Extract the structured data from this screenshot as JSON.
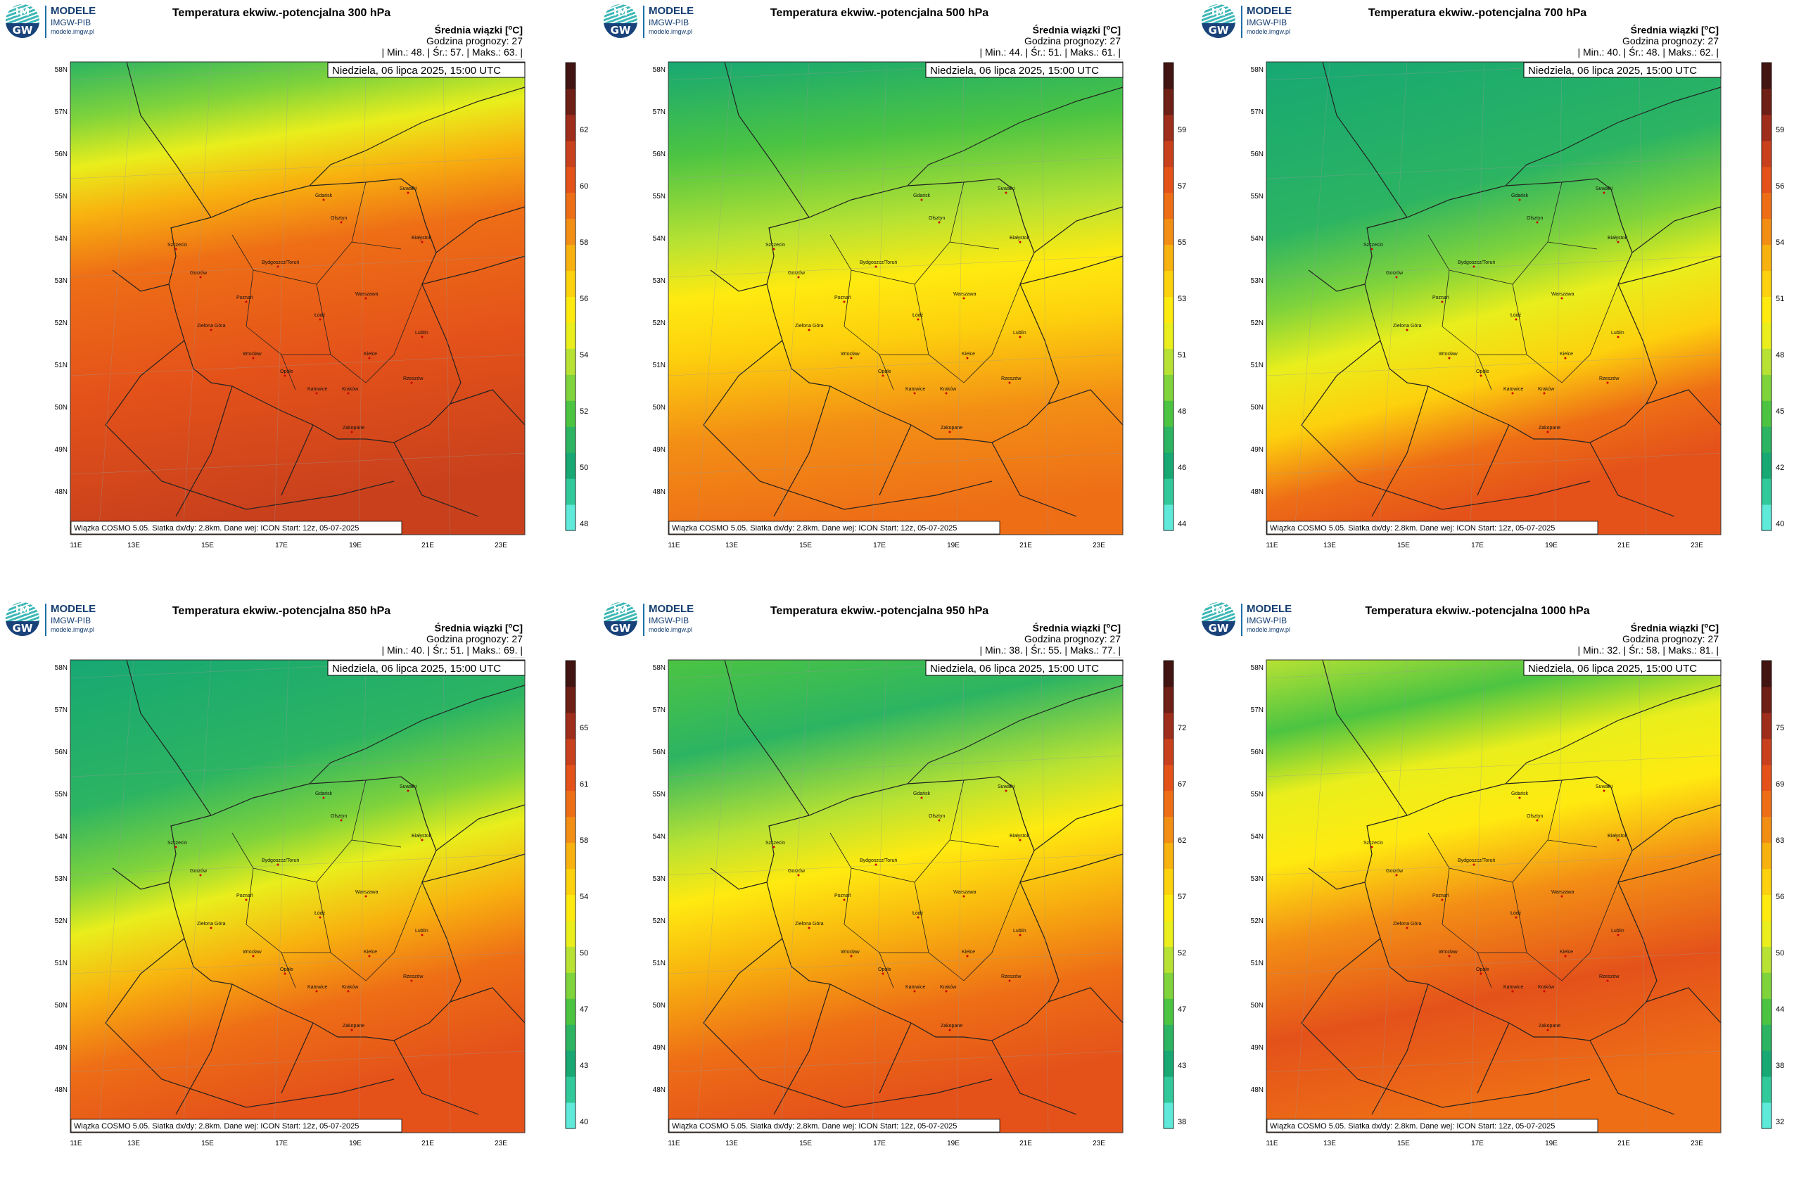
{
  "brand": {
    "line1": "MODELE",
    "line2": "IMGW-PIB",
    "line3": "modele.imgw.pl",
    "badge_top": "IM",
    "badge_bottom": "GW"
  },
  "common": {
    "subtitle": "Średnia wiązki [oC]",
    "forecast_hour": "Godzina prognozy: 27",
    "date": "Niedziela, 06 lipca 2025, 15:00 UTC",
    "footer": "Wiązka COSMO 5.05. Siatka dx/dy: 2.8km. Dane wej: ICON Start: 12z, 05-07-2025",
    "lat_labels": [
      "58N",
      "57N",
      "56N",
      "55N",
      "54N",
      "53N",
      "52N",
      "51N",
      "50N",
      "49N",
      "48N"
    ],
    "lon_labels": [
      "11E",
      "13E",
      "15E",
      "17E",
      "19E",
      "21E",
      "23E"
    ],
    "cities": [
      "Gdańsk",
      "Olsztyn",
      "Szczecin",
      "Bydgoszcz/Toruń",
      "Białystok",
      "Gorzów",
      "Poznań",
      "Warszawa",
      "Łódź",
      "Zielona Góra",
      "Lublin",
      "Wrocław",
      "Kielce",
      "Opole",
      "Katowice",
      "Kraków",
      "Rzeszów",
      "Zakopane",
      "Suwałki"
    ]
  },
  "panels": [
    {
      "title": "Temperatura ekwiw.-potencjalna 300 hPa",
      "stats": "| Min.: 48. | Śr.: 57. | Maks.: 63. |",
      "colorbar_ticks": [
        "62",
        "60",
        "58",
        "56",
        "54",
        "52",
        "50",
        "48"
      ],
      "pattern": "p300"
    },
    {
      "title": "Temperatura ekwiw.-potencjalna 500 hPa",
      "stats": "| Min.: 44. | Śr.: 51. | Maks.: 61. |",
      "colorbar_ticks": [
        "59",
        "57",
        "55",
        "53",
        "51",
        "48",
        "46",
        "44"
      ],
      "pattern": "p500"
    },
    {
      "title": "Temperatura ekwiw.-potencjalna 700 hPa",
      "stats": "| Min.: 40. | Śr.: 48. | Maks.: 62. |",
      "colorbar_ticks": [
        "59",
        "56",
        "54",
        "51",
        "48",
        "45",
        "42",
        "40"
      ],
      "pattern": "p700"
    },
    {
      "title": "Temperatura ekwiw.-potencjalna 850 hPa",
      "stats": "| Min.: 40. | Śr.: 51. | Maks.: 69. |",
      "colorbar_ticks": [
        "65",
        "61",
        "58",
        "54",
        "50",
        "47",
        "43",
        "40"
      ],
      "pattern": "p850"
    },
    {
      "title": "Temperatura ekwiw.-potencjalna 950 hPa",
      "stats": "| Min.: 38. | Śr.: 55. | Maks.: 77. |",
      "colorbar_ticks": [
        "72",
        "67",
        "62",
        "57",
        "52",
        "47",
        "43",
        "38"
      ],
      "pattern": "p950"
    },
    {
      "title": "Temperatura ekwiw.-potencjalna 1000 hPa",
      "stats": "| Min.: 32. | Śr.: 58. | Maks.: 81. |",
      "colorbar_ticks": [
        "75",
        "69",
        "63",
        "56",
        "50",
        "44",
        "38",
        "32"
      ],
      "pattern": "p1000"
    }
  ],
  "colors": {
    "colorbar": [
      "#5fe9d9",
      "#31c99a",
      "#17a873",
      "#2cb462",
      "#4cc442",
      "#7fd33b",
      "#b7e233",
      "#e9ee1c",
      "#ffea10",
      "#fdd10d",
      "#f8b20f",
      "#f38e15",
      "#ee6e16",
      "#e4521a",
      "#c8401c",
      "#9e2d1c",
      "#6e1f16",
      "#421512"
    ],
    "border": "#222222"
  }
}
